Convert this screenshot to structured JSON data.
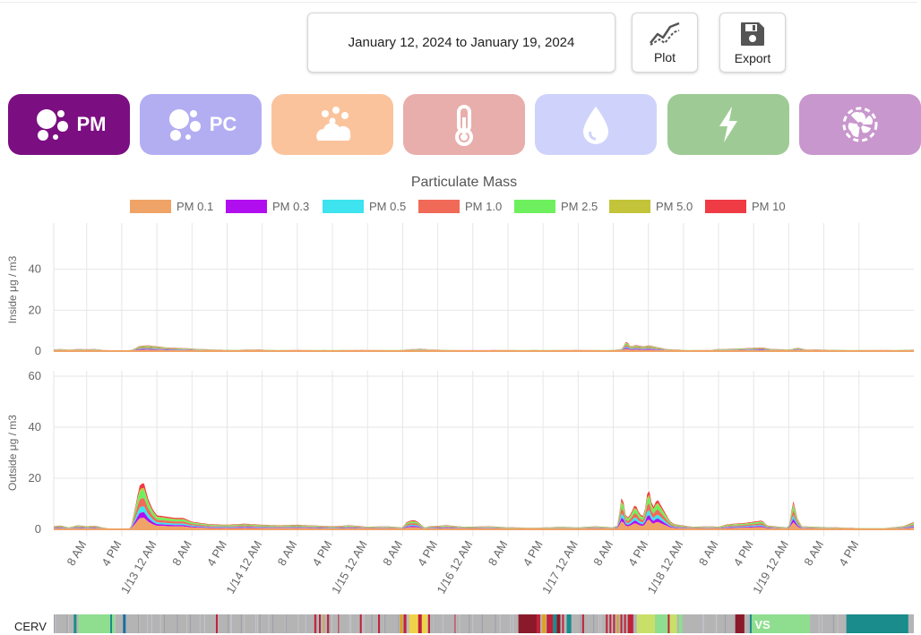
{
  "header": {
    "date_range": "January 12, 2024 to January 19, 2024",
    "plot_label": "Plot",
    "export_label": "Export"
  },
  "categories": [
    {
      "id": "pm",
      "label": "PM",
      "icon": "particles-icon",
      "color": "#7b0f82",
      "active": true
    },
    {
      "id": "pc",
      "label": "PC",
      "icon": "particles-icon",
      "color": "#b3aef2",
      "active": false
    },
    {
      "id": "pollen",
      "label": "",
      "icon": "pollen-icon",
      "color": "#fbc39c",
      "active": false
    },
    {
      "id": "temperature",
      "label": "",
      "icon": "thermometer-icon",
      "color": "#e8aeab",
      "active": false
    },
    {
      "id": "humidity",
      "label": "",
      "icon": "water-drop-icon",
      "color": "#cfd3fb",
      "active": false
    },
    {
      "id": "power",
      "label": "",
      "icon": "lightning-icon",
      "color": "#9ecb95",
      "active": false
    },
    {
      "id": "fan",
      "label": "",
      "icon": "fan-icon",
      "color": "#c897cd",
      "active": false
    }
  ],
  "chart_data": {
    "type": "area",
    "title": "Particulate Mass",
    "legend_position": "top",
    "series": [
      {
        "name": "PM 0.1",
        "color": "#f0a366"
      },
      {
        "name": "PM 0.3",
        "color": "#b10ef0"
      },
      {
        "name": "PM 0.5",
        "color": "#3de3ef"
      },
      {
        "name": "PM 1.0",
        "color": "#f06a57"
      },
      {
        "name": "PM 2.5",
        "color": "#6ef05e"
      },
      {
        "name": "PM 5.0",
        "color": "#c3c43a"
      },
      {
        "name": "PM 10",
        "color": "#ef3b43"
      }
    ],
    "x_tick_labels": [
      "8 AM",
      "4 PM",
      "1/13 12 AM",
      "8 AM",
      "4 PM",
      "1/14 12 AM",
      "8 AM",
      "4 PM",
      "1/15 12 AM",
      "8 AM",
      "4 PM",
      "1/16 12 AM",
      "8 AM",
      "4 PM",
      "1/17 12 AM",
      "8 AM",
      "4 PM",
      "1/18 12 AM",
      "8 AM",
      "4 PM",
      "1/19 12 AM",
      "8 AM",
      "4 PM"
    ],
    "x_hours": [
      8,
      16,
      24,
      32,
      40,
      48,
      56,
      64,
      72,
      80,
      88,
      96,
      104,
      112,
      120,
      128,
      136,
      144,
      152,
      160,
      168,
      176,
      184
    ],
    "x_range_hours": [
      0.5,
      196.5
    ],
    "grid": true,
    "panels": [
      {
        "ylabel": "Inside μg / m3",
        "yticks": [
          0,
          20,
          40
        ],
        "ylim": [
          0,
          60
        ],
        "totals": [
          [
            0.5,
            0.8
          ],
          [
            2,
            1.0
          ],
          [
            4,
            0.7
          ],
          [
            6,
            1.0
          ],
          [
            8,
            0.9
          ],
          [
            10,
            1.0
          ],
          [
            12,
            0.5
          ],
          [
            16,
            0.3
          ],
          [
            18,
            0.5
          ],
          [
            19,
            1.2
          ],
          [
            20,
            2.5
          ],
          [
            22,
            2.8
          ],
          [
            24,
            2.3
          ],
          [
            26,
            1.8
          ],
          [
            28,
            1.6
          ],
          [
            30,
            1.5
          ],
          [
            34,
            1.0
          ],
          [
            38,
            0.7
          ],
          [
            42,
            0.6
          ],
          [
            46,
            0.8
          ],
          [
            50,
            0.6
          ],
          [
            56,
            0.5
          ],
          [
            62,
            0.6
          ],
          [
            70,
            0.5
          ],
          [
            80,
            0.6
          ],
          [
            84,
            1.2
          ],
          [
            86,
            0.8
          ],
          [
            92,
            0.5
          ],
          [
            100,
            0.5
          ],
          [
            110,
            0.6
          ],
          [
            120,
            0.5
          ],
          [
            128,
            0.6
          ],
          [
            130,
            1.0
          ],
          [
            131,
            5.0
          ],
          [
            132,
            2.0
          ],
          [
            133,
            3.0
          ],
          [
            134,
            2.6
          ],
          [
            135,
            2.2
          ],
          [
            136,
            2.8
          ],
          [
            138,
            2.0
          ],
          [
            140,
            1.0
          ],
          [
            144,
            0.6
          ],
          [
            150,
            0.5
          ],
          [
            152,
            1.0
          ],
          [
            156,
            1.2
          ],
          [
            160,
            1.6
          ],
          [
            162,
            1.8
          ],
          [
            164,
            1.0
          ],
          [
            168,
            0.8
          ],
          [
            170,
            1.6
          ],
          [
            172,
            0.8
          ],
          [
            180,
            0.6
          ],
          [
            190,
            0.5
          ],
          [
            196.5,
            0.7
          ]
        ]
      },
      {
        "ylabel": "Outside μg / m3",
        "yticks": [
          0,
          20,
          40,
          60
        ],
        "ylim": [
          0,
          60
        ],
        "totals": [
          [
            0.5,
            1.2
          ],
          [
            2,
            1.5
          ],
          [
            4,
            0.8
          ],
          [
            6,
            1.6
          ],
          [
            8,
            1.2
          ],
          [
            10,
            1.4
          ],
          [
            12,
            0.6
          ],
          [
            14,
            0.2
          ],
          [
            16,
            0.2
          ],
          [
            18,
            0.3
          ],
          [
            19,
            8
          ],
          [
            20,
            17
          ],
          [
            21,
            18.5
          ],
          [
            22,
            12
          ],
          [
            23,
            8
          ],
          [
            24,
            5.5
          ],
          [
            26,
            5.0
          ],
          [
            28,
            4.5
          ],
          [
            30,
            4.5
          ],
          [
            32,
            3.0
          ],
          [
            34,
            2.5
          ],
          [
            36,
            2.0
          ],
          [
            40,
            1.8
          ],
          [
            44,
            2.2
          ],
          [
            48,
            1.8
          ],
          [
            52,
            1.6
          ],
          [
            56,
            1.8
          ],
          [
            60,
            1.5
          ],
          [
            64,
            1.2
          ],
          [
            68,
            1.6
          ],
          [
            72,
            1.0
          ],
          [
            76,
            1.2
          ],
          [
            80,
            0.8
          ],
          [
            81,
            3.0
          ],
          [
            82,
            3.5
          ],
          [
            83,
            3.5
          ],
          [
            84,
            2.2
          ],
          [
            85,
            0.6
          ],
          [
            86,
            1.2
          ],
          [
            90,
            1.6
          ],
          [
            94,
            1.0
          ],
          [
            100,
            1.2
          ],
          [
            104,
            0.8
          ],
          [
            110,
            0.6
          ],
          [
            116,
            1.0
          ],
          [
            120,
            0.8
          ],
          [
            124,
            1.2
          ],
          [
            128,
            0.8
          ],
          [
            129,
            1.5
          ],
          [
            130,
            14
          ],
          [
            131,
            4.0
          ],
          [
            132,
            6.0
          ],
          [
            133,
            10
          ],
          [
            134,
            6.0
          ],
          [
            135,
            5.0
          ],
          [
            136,
            17
          ],
          [
            137,
            8.0
          ],
          [
            138,
            12
          ],
          [
            139,
            9.0
          ],
          [
            140,
            6.0
          ],
          [
            141,
            3.0
          ],
          [
            142,
            2.0
          ],
          [
            144,
            1.5
          ],
          [
            146,
            1.0
          ],
          [
            150,
            1.2
          ],
          [
            152,
            1.0
          ],
          [
            154,
            2.0
          ],
          [
            158,
            2.5
          ],
          [
            160,
            3.0
          ],
          [
            162,
            3.5
          ],
          [
            163,
            1.5
          ],
          [
            166,
            1.0
          ],
          [
            168,
            0.8
          ],
          [
            169,
            11.5
          ],
          [
            170,
            4.0
          ],
          [
            171,
            1.2
          ],
          [
            174,
            1.0
          ],
          [
            178,
            0.8
          ],
          [
            184,
            0.5
          ],
          [
            190,
            0.5
          ],
          [
            194,
            1.2
          ],
          [
            196.5,
            2.8
          ]
        ]
      }
    ],
    "series_shares": [
      0.25,
      0.12,
      0.13,
      0.18,
      0.17,
      0.05,
      0.1
    ]
  },
  "cerv": {
    "label": "CERV",
    "overlay_text": "VS",
    "base_color": "#b4b4b4",
    "segments": [
      {
        "start": 22,
        "end": 25,
        "color": "#1a8c8c"
      },
      {
        "start": 25,
        "end": 27,
        "color": "#b4b4b4"
      },
      {
        "start": 27,
        "end": 62,
        "color": "#8fde8f"
      },
      {
        "start": 62,
        "end": 64,
        "color": "#1a8c8c"
      },
      {
        "start": 64,
        "end": 67,
        "color": "#8fde8f"
      },
      {
        "start": 76,
        "end": 79,
        "color": "#1a6fa0"
      },
      {
        "start": 178,
        "end": 180,
        "color": "#c0223a"
      },
      {
        "start": 286,
        "end": 288,
        "color": "#c0223a"
      },
      {
        "start": 291,
        "end": 293,
        "color": "#c0223a"
      },
      {
        "start": 296,
        "end": 297,
        "color": "#e0a020"
      },
      {
        "start": 300,
        "end": 302,
        "color": "#c0223a"
      },
      {
        "start": 312,
        "end": 313,
        "color": "#c0223a"
      },
      {
        "start": 336,
        "end": 338,
        "color": "#c0223a"
      },
      {
        "start": 356,
        "end": 358,
        "color": "#c0223a"
      },
      {
        "start": 380,
        "end": 383,
        "color": "#e0a020"
      },
      {
        "start": 384,
        "end": 387,
        "color": "#c0223a"
      },
      {
        "start": 390,
        "end": 400,
        "color": "#f0d24a"
      },
      {
        "start": 400,
        "end": 404,
        "color": "#c0223a"
      },
      {
        "start": 404,
        "end": 410,
        "color": "#f0d24a"
      },
      {
        "start": 411,
        "end": 413,
        "color": "#c0223a"
      },
      {
        "start": 440,
        "end": 441,
        "color": "#c0223a"
      },
      {
        "start": 510,
        "end": 530,
        "color": "#8a1a2a"
      },
      {
        "start": 530,
        "end": 534,
        "color": "#c0223a"
      },
      {
        "start": 536,
        "end": 540,
        "color": "#e0a020"
      },
      {
        "start": 541,
        "end": 548,
        "color": "#c0223a"
      },
      {
        "start": 548,
        "end": 552,
        "color": "#1a8c8c"
      },
      {
        "start": 552,
        "end": 556,
        "color": "#8a1a2a"
      },
      {
        "start": 558,
        "end": 560,
        "color": "#c0223a"
      },
      {
        "start": 563,
        "end": 568,
        "color": "#1a8c8c"
      },
      {
        "start": 580,
        "end": 582,
        "color": "#c0223a"
      },
      {
        "start": 606,
        "end": 608,
        "color": "#c0223a"
      },
      {
        "start": 610,
        "end": 612,
        "color": "#c0223a"
      },
      {
        "start": 614,
        "end": 616,
        "color": "#c0223a"
      },
      {
        "start": 618,
        "end": 620,
        "color": "#e0a020"
      },
      {
        "start": 622,
        "end": 624,
        "color": "#c0223a"
      },
      {
        "start": 626,
        "end": 628,
        "color": "#c0223a"
      },
      {
        "start": 630,
        "end": 636,
        "color": "#c0223a"
      },
      {
        "start": 640,
        "end": 660,
        "color": "#c8e06a"
      },
      {
        "start": 660,
        "end": 674,
        "color": "#8fde8f"
      },
      {
        "start": 674,
        "end": 676,
        "color": "#c0223a"
      },
      {
        "start": 676,
        "end": 684,
        "color": "#c8e06a"
      },
      {
        "start": 686,
        "end": 690,
        "color": "#8fde8f"
      },
      {
        "start": 748,
        "end": 758,
        "color": "#8a1a2a"
      },
      {
        "start": 764,
        "end": 766,
        "color": "#1a8c8c"
      },
      {
        "start": 766,
        "end": 830,
        "color": "#8fde8f"
      },
      {
        "start": 870,
        "end": 938,
        "color": "#1a8c8c"
      },
      {
        "start": 938,
        "end": 944,
        "color": "#b4b4b4"
      }
    ]
  }
}
